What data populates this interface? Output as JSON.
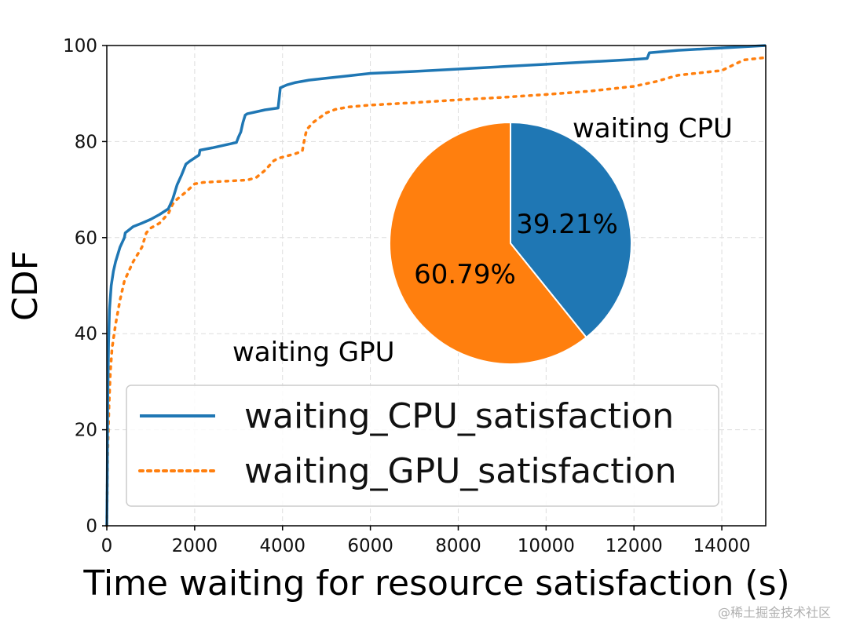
{
  "chart_data": [
    {
      "type": "line",
      "xlabel": "Time waiting for resource satisfaction (s)",
      "ylabel": "CDF",
      "xlim": [
        0,
        15000
      ],
      "ylim": [
        0,
        100
      ],
      "x_ticks": [
        0,
        2000,
        4000,
        6000,
        8000,
        10000,
        12000,
        14000
      ],
      "y_ticks": [
        0,
        20,
        40,
        60,
        80,
        100
      ],
      "grid": true,
      "legend_position": "bottom-center",
      "series": [
        {
          "name": "waiting_CPU_satisfaction",
          "color": "#1f77b4",
          "style": "solid",
          "x": [
            0,
            10,
            20,
            40,
            60,
            100,
            150,
            200,
            300,
            400,
            420,
            600,
            800,
            1000,
            1200,
            1400,
            1450,
            1500,
            1550,
            1600,
            1700,
            1800,
            1900,
            2100,
            2120,
            2400,
            2700,
            2950,
            3000,
            3050,
            3100,
            3150,
            3200,
            3400,
            3600,
            3900,
            3950,
            4100,
            4300,
            4600,
            5000,
            5500,
            6000,
            7000,
            8000,
            9000,
            10000,
            11000,
            12000,
            12300,
            12350,
            13000,
            14000,
            15000
          ],
          "y": [
            0,
            10,
            25,
            38,
            45,
            50,
            53,
            55,
            58,
            60,
            61,
            62.3,
            63,
            63.8,
            64.8,
            66,
            67,
            68,
            69.5,
            71,
            73,
            75.3,
            76,
            77.2,
            78.2,
            78.7,
            79.3,
            79.8,
            81,
            82,
            84,
            85.5,
            85.8,
            86.2,
            86.6,
            87,
            91.2,
            91.8,
            92.3,
            92.8,
            93.2,
            93.7,
            94.2,
            94.6,
            95.1,
            95.6,
            96.1,
            96.6,
            97.1,
            97.3,
            98.5,
            99,
            99.5,
            100
          ]
        },
        {
          "name": "waiting_GPU_satisfaction",
          "color": "#ff7f0e",
          "style": "dotted",
          "x": [
            0,
            10,
            20,
            50,
            80,
            120,
            200,
            300,
            400,
            500,
            600,
            700,
            800,
            900,
            1000,
            1200,
            1400,
            1500,
            1600,
            1800,
            2000,
            2200,
            2400,
            2600,
            2800,
            3000,
            3200,
            3400,
            3600,
            3800,
            3900,
            4100,
            4300,
            4450,
            4500,
            4550,
            4700,
            5000,
            5200,
            5500,
            6000,
            7000,
            8000,
            9000,
            10000,
            11000,
            12000,
            12500,
            13000,
            14000,
            14500,
            15000
          ],
          "y": [
            0,
            8,
            15,
            25,
            32,
            37,
            42,
            47,
            51,
            53,
            55,
            56.5,
            58,
            61,
            62,
            63,
            65,
            67,
            68,
            69.5,
            71.2,
            71.5,
            71.6,
            71.7,
            71.8,
            71.9,
            72,
            72.5,
            74,
            76,
            76.5,
            77,
            77.5,
            78,
            80.5,
            82.5,
            84,
            86,
            86.7,
            87.2,
            87.6,
            88.1,
            88.7,
            89.2,
            89.8,
            90.5,
            91.5,
            92.5,
            93.8,
            94.8,
            97,
            97.5
          ]
        }
      ]
    },
    {
      "type": "pie",
      "slices": [
        {
          "label": "waiting CPU",
          "value": 39.21,
          "value_text": "39.21%",
          "color": "#1f77b4"
        },
        {
          "label": "waiting GPU",
          "value": 60.79,
          "value_text": "60.79%",
          "color": "#ff7f0e"
        }
      ]
    }
  ],
  "watermark": "@稀土掘金技术社区"
}
